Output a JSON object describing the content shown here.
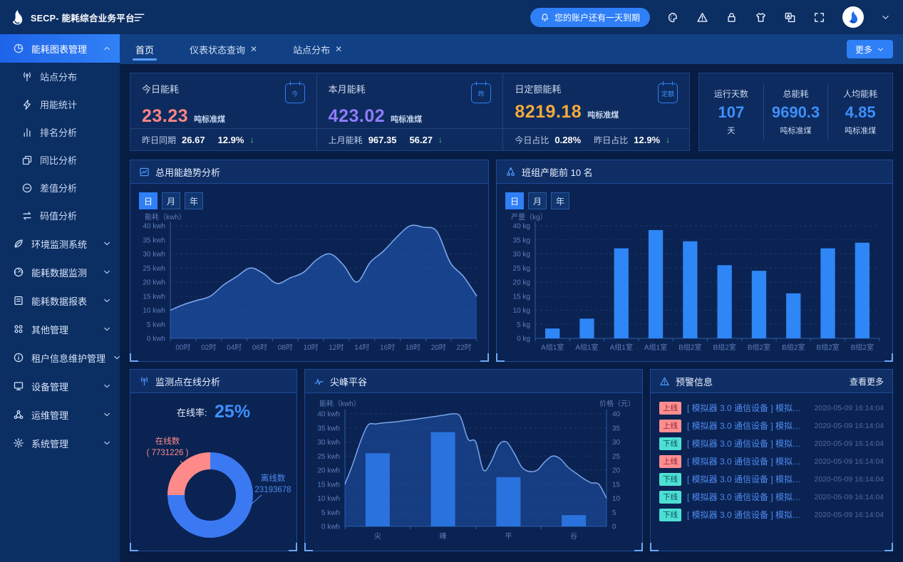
{
  "colors": {
    "accent": "#2f7ff7",
    "pink": "#ff8585",
    "purple": "#8f7cf8",
    "orange": "#f3aa3c",
    "value_blue": "#3f8ffb",
    "green_down": "#45d68a",
    "bar_blue": "#2e86f7",
    "online_badge": {
      "bg": "#ff8f8f",
      "text": "#8a2239"
    },
    "offline_badge": {
      "bg": "#4ddfd4",
      "text": "#0b4f5a"
    }
  },
  "brand": {
    "name": "SECP- 能耗综合业务平台"
  },
  "header": {
    "notification": "您的账户还有一天到期",
    "icons": [
      "palette-icon",
      "alert-triangle-icon",
      "lock-icon",
      "theme-icon",
      "language-icon",
      "fullscreen-icon"
    ]
  },
  "sidebar": {
    "items": [
      {
        "label": "能耗图表管理",
        "icon": "pie-chart-icon",
        "active": true,
        "expanded": true,
        "children": [
          {
            "label": "站点分布",
            "icon": "antenna-icon"
          },
          {
            "label": "用能统计",
            "icon": "lightning-icon"
          },
          {
            "label": "排名分析",
            "icon": "bar-chart-icon"
          },
          {
            "label": "同比分析",
            "icon": "compare-icon"
          },
          {
            "label": "差值分析",
            "icon": "minus-circle-icon"
          },
          {
            "label": "码值分析",
            "icon": "swap-icon"
          }
        ]
      },
      {
        "label": "环境监测系统",
        "icon": "leaf-icon"
      },
      {
        "label": "能耗数据监测",
        "icon": "gauge-icon"
      },
      {
        "label": "能耗数据报表",
        "icon": "report-icon"
      },
      {
        "label": "其他管理",
        "icon": "grid-icon"
      },
      {
        "label": "租户信息维护管理",
        "icon": "info-icon"
      },
      {
        "label": "设备管理",
        "icon": "device-icon"
      },
      {
        "label": "运维管理",
        "icon": "ops-icon"
      },
      {
        "label": "系统管理",
        "icon": "gear-icon"
      }
    ]
  },
  "tabs": {
    "items": [
      {
        "label": "首页",
        "active": true,
        "closable": false
      },
      {
        "label": "仪表状态查询",
        "active": false,
        "closable": true
      },
      {
        "label": "站点分布",
        "active": false,
        "closable": true
      }
    ],
    "more_label": "更多"
  },
  "stats": {
    "cards": [
      {
        "title": "今日能耗",
        "icon_text": "今",
        "value": "23.23",
        "unit": "吨标准煤",
        "footer": [
          {
            "label": "昨日同期",
            "value": "26.67"
          },
          {
            "label": "",
            "value": "12.9%",
            "trend": "down"
          }
        ]
      },
      {
        "title": "本月能耗",
        "icon_text": "昨",
        "value": "423.02",
        "unit": "吨标准煤",
        "footer": [
          {
            "label": "上月能耗",
            "value": "967.35"
          },
          {
            "label": "",
            "value": "56.27",
            "trend": "down"
          }
        ]
      },
      {
        "title": "日定额能耗",
        "icon_text": "定额",
        "value": "8219.18",
        "unit": "吨标准煤",
        "footer": [
          {
            "label": "今日占比",
            "value": "0.28%"
          },
          {
            "label": "昨日占比",
            "value": "12.9%",
            "trend": "down"
          }
        ]
      }
    ],
    "summary": [
      {
        "label": "运行天数",
        "value": "107",
        "unit": "天"
      },
      {
        "label": "总能耗",
        "value": "9690.3",
        "unit": "吨标准煤"
      },
      {
        "label": "人均能耗",
        "value": "4.85",
        "unit": "吨标准煤"
      }
    ]
  },
  "panels": {
    "trend": {
      "title": "总用能趋势分析",
      "tabs": [
        "日",
        "月",
        "年"
      ],
      "active_tab": "日"
    },
    "teams": {
      "title": "班组产能前 10 名",
      "tabs": [
        "日",
        "月",
        "年"
      ],
      "active_tab": "日"
    },
    "online": {
      "title": "监测点在线分析",
      "rate_label": "在线率:",
      "rate": "25%",
      "online_label": "在线数",
      "online_value": "( 7731226 )",
      "offline_label": "离线数",
      "offline_value": "23193678"
    },
    "peak": {
      "title": "尖峰平谷"
    },
    "alerts": {
      "title": "预警信息",
      "more": "查看更多",
      "rows": [
        {
          "status": "上线",
          "text": "[ 模拟器 3.0 通信设备 ] 模拟器 3.0...",
          "time": "2020-05-09 16:14:04"
        },
        {
          "status": "上线",
          "text": "[ 模拟器 3.0 通信设备 ] 模拟器 3.0...",
          "time": "2020-05-09 16:14:04"
        },
        {
          "status": "下线",
          "text": "[ 模拟器 3.0 通信设备 ] 模拟器 3.0...",
          "time": "2020-05-09 16:14:04"
        },
        {
          "status": "上线",
          "text": "[ 模拟器 3.0 通信设备 ] 模拟器 3.0...",
          "time": "2020-05-09 16:14:04"
        },
        {
          "status": "下线",
          "text": "[ 模拟器 3.0 通信设备 ] 模拟器 3.0...",
          "time": "2020-05-09 16:14:04"
        },
        {
          "status": "下线",
          "text": "[ 模拟器 3.0 通信设备 ] 模拟器 3.0...",
          "time": "2020-05-09 16:14:04"
        },
        {
          "status": "下线",
          "text": "[ 模拟器 3.0 通信设备 ] 模拟器 3.0...",
          "time": "2020-05-09 16:14:04"
        }
      ]
    }
  },
  "chart_data": [
    {
      "id": "trend",
      "type": "area",
      "title": "总用能趋势分析",
      "ylabel": "能耗（kwh）",
      "ylim": [
        0,
        40
      ],
      "ytick_step": 5,
      "ytick_suffix": " kwh",
      "xticks": [
        "00时",
        "02时",
        "04时",
        "06时",
        "08时",
        "10时",
        "12时",
        "14时",
        "16时",
        "18时",
        "20时",
        "22时"
      ],
      "values": [
        10,
        12,
        13.5,
        15,
        19,
        22,
        25,
        23,
        19.5,
        21.5,
        23.5,
        28,
        30,
        26,
        20,
        27,
        31,
        36,
        40,
        39.5,
        38,
        27,
        22,
        15
      ]
    },
    {
      "id": "teams",
      "type": "bar",
      "title": "班组产能前 10 名",
      "ylabel": "产量（kg）",
      "ylim": [
        0,
        40
      ],
      "ytick_step": 5,
      "ytick_suffix": " kg",
      "categories": [
        "A组1室",
        "A组1室",
        "A组1室",
        "A组1室",
        "B组2室",
        "B组2室",
        "B组2室",
        "B组2室",
        "B组2室",
        "B组2室"
      ],
      "values": [
        3.5,
        7,
        32,
        38.5,
        34.5,
        26,
        24,
        16,
        32,
        34
      ]
    },
    {
      "id": "online",
      "type": "donut",
      "title": "监测点在线分析",
      "rate": 25,
      "segments": [
        {
          "name": "在线数",
          "value": 7731226,
          "color": "#ff8a8a"
        },
        {
          "name": "离线数",
          "value": 23193678,
          "color": "#3b79f2"
        }
      ]
    },
    {
      "id": "peak",
      "type": "combo",
      "title": "尖峰平谷",
      "ylabel_left": "能耗（kwh）",
      "ylabel_right": "价格（元）",
      "ylim": [
        0,
        40
      ],
      "ytick_step": 5,
      "ytick_suffix": " kwh",
      "categories": [
        "尖",
        "峰",
        "平",
        "谷"
      ],
      "bar_values": [
        26,
        33.5,
        17.5,
        4
      ],
      "line_values": [
        15,
        22,
        30,
        36,
        36.4,
        36.8,
        37,
        37.3,
        37.7,
        38,
        38.4,
        38.8,
        39.2,
        39.6,
        40,
        39,
        31,
        30,
        20,
        23,
        29,
        30,
        26,
        21,
        19.5,
        20,
        23,
        25,
        24,
        21,
        19,
        17,
        15.5,
        15,
        10
      ]
    }
  ]
}
